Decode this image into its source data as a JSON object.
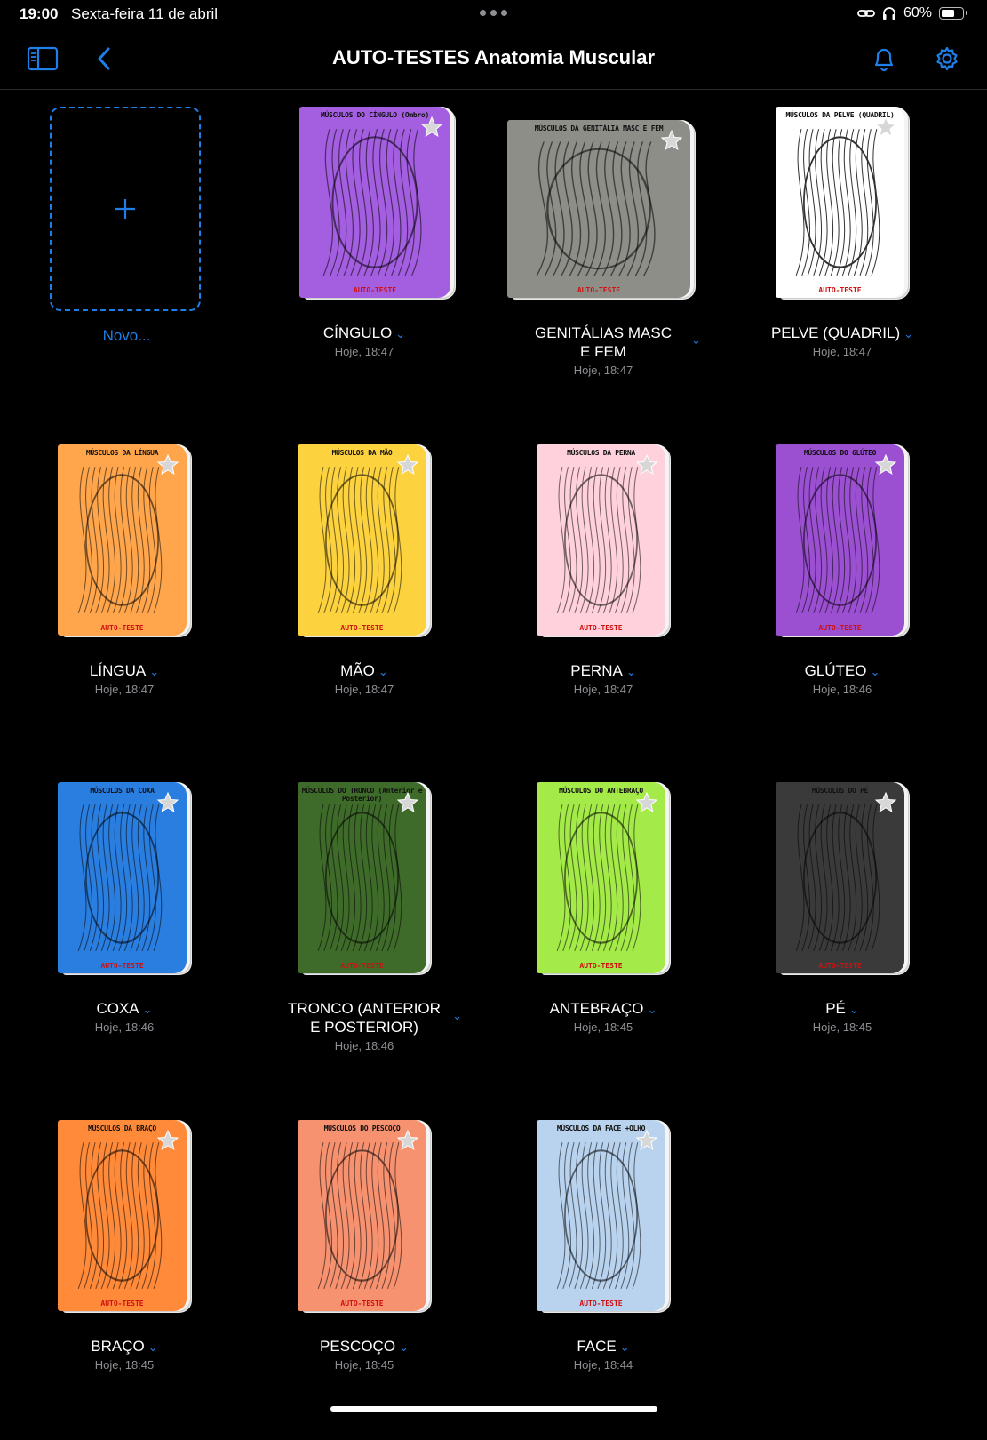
{
  "status": {
    "time": "19:00",
    "date": "Sexta-feira 11 de abril",
    "battery": "60%"
  },
  "nav": {
    "title": "AUTO-TESTES Anatomia Muscular"
  },
  "new_item": {
    "label": "Novo..."
  },
  "colors": {
    "accent": "#1e7fe8"
  },
  "notebooks": [
    {
      "label_lines": [
        "CÍNGULO"
      ],
      "date": "Hoje, 18:47",
      "cover_title": "MÚSCULOS DO CÍNGULO (Ombro)",
      "cover_footer": "AUTO-TESTE",
      "color": "#a45ee0",
      "theme": "dark"
    },
    {
      "label_lines": [
        "GENITÁLIAS MASC",
        "E FEM"
      ],
      "date": "Hoje, 18:47",
      "cover_title": "MÚSCULOS DA GENITÁLIA MASC E FEM",
      "cover_footer": "AUTO-TESTE",
      "color": "#8e8e89",
      "theme": "dark"
    },
    {
      "label_lines": [
        "PELVE (QUADRIL)"
      ],
      "date": "Hoje, 18:47",
      "cover_title": "MÚSCULOS DA PELVE (QUADRIL)",
      "cover_footer": "AUTO-TESTE",
      "color": "#ffffff",
      "theme": "light"
    },
    {
      "label_lines": [
        "LÍNGUA"
      ],
      "date": "Hoje, 18:47",
      "cover_title": "MÚSCULOS DA LÍNGUA",
      "cover_footer": "AUTO-TESTE",
      "color": "#ffa64d",
      "theme": "dark"
    },
    {
      "label_lines": [
        "MÃO"
      ],
      "date": "Hoje, 18:47",
      "cover_title": "MÚSCULOS DA MÃO",
      "cover_footer": "AUTO-TESTE",
      "color": "#fcd23f",
      "theme": "dark"
    },
    {
      "label_lines": [
        "PERNA"
      ],
      "date": "Hoje, 18:47",
      "cover_title": "MÚSCULOS DA PERNA",
      "cover_footer": "AUTO-TESTE",
      "color": "#ffd1dc",
      "theme": "dark"
    },
    {
      "label_lines": [
        "GLÚTEO"
      ],
      "date": "Hoje, 18:46",
      "cover_title": "MÚSCULOS DO GLÚTEO",
      "cover_footer": "AUTO-TESTE",
      "color": "#9b4fd1",
      "theme": "dark"
    },
    {
      "label_lines": [
        "COXA"
      ],
      "date": "Hoje, 18:46",
      "cover_title": "MÚSCULOS DA COXA",
      "cover_footer": "AUTO-TESTE",
      "color": "#2a7ee0",
      "theme": "dark"
    },
    {
      "label_lines": [
        "TRONCO (ANTERIOR",
        "E POSTERIOR)"
      ],
      "date": "Hoje, 18:46",
      "cover_title": "MÚSCULOS DO TRONCO (Anterior e Posterior)",
      "cover_footer": "AUTO-TESTE",
      "color": "#3f6b2a",
      "theme": "dark"
    },
    {
      "label_lines": [
        "ANTEBRAÇO"
      ],
      "date": "Hoje, 18:45",
      "cover_title": "MÚSCULOS DO ANTEBRAÇO",
      "cover_footer": "AUTO-TESTE",
      "color": "#a4ea48",
      "theme": "dark"
    },
    {
      "label_lines": [
        "PÉ"
      ],
      "date": "Hoje, 18:45",
      "cover_title": "MÚSCULOS DO PÉ",
      "cover_footer": "AUTO-TESTE",
      "color": "#3a3a3a",
      "theme": "dark"
    },
    {
      "label_lines": [
        "BRAÇO"
      ],
      "date": "Hoje, 18:45",
      "cover_title": "MÚSCULOS DA BRAÇO",
      "cover_footer": "AUTO-TESTE",
      "color": "#ff8a3a",
      "theme": "dark"
    },
    {
      "label_lines": [
        "PESCOÇO"
      ],
      "date": "Hoje, 18:45",
      "cover_title": "MÚSCULOS DO PESCOÇO",
      "cover_footer": "AUTO-TESTE",
      "color": "#f79271",
      "theme": "dark"
    },
    {
      "label_lines": [
        "FACE"
      ],
      "date": "Hoje, 18:44",
      "cover_title": "MÚSCULOS DA FACE +OLHO",
      "cover_footer": "AUTO-TESTE",
      "color": "#b9d3ef",
      "theme": "dark"
    }
  ]
}
